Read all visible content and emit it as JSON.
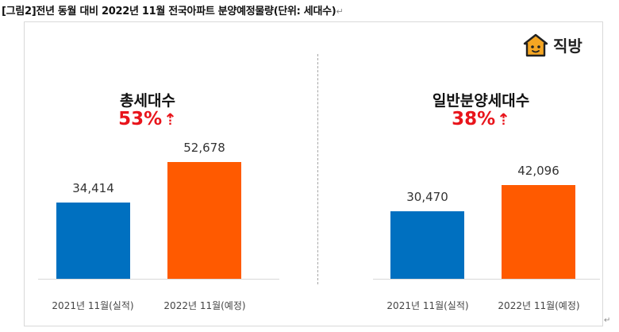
{
  "caption": "[그림2]전년 동월 대비 2022년 11월 전국아파트 분양예정물량(단위: 세대수)",
  "caption_mark": "↵",
  "logo": {
    "text": "직방",
    "icon": "house-icon",
    "color": "#f5a623"
  },
  "colors": {
    "actual": "#0070c0",
    "planned": "#ff5a00",
    "growth": "#e8141b"
  },
  "chart_data": [
    {
      "type": "bar",
      "title": "총세대수",
      "annotation": "53%",
      "categories": [
        "2021년 11월(실적)",
        "2022년 11월(예정)"
      ],
      "values": [
        34414,
        52678
      ],
      "value_labels": [
        "34,414",
        "52,678"
      ],
      "ylim": [
        0,
        60000
      ],
      "xlabel": "",
      "ylabel": ""
    },
    {
      "type": "bar",
      "title": "일반분양세대수",
      "annotation": "38%",
      "categories": [
        "2021년 11월(실적)",
        "2022년 11월(예정)"
      ],
      "values": [
        30470,
        42096
      ],
      "value_labels": [
        "30,470",
        "42,096"
      ],
      "ylim": [
        0,
        60000
      ],
      "xlabel": "",
      "ylabel": ""
    }
  ]
}
